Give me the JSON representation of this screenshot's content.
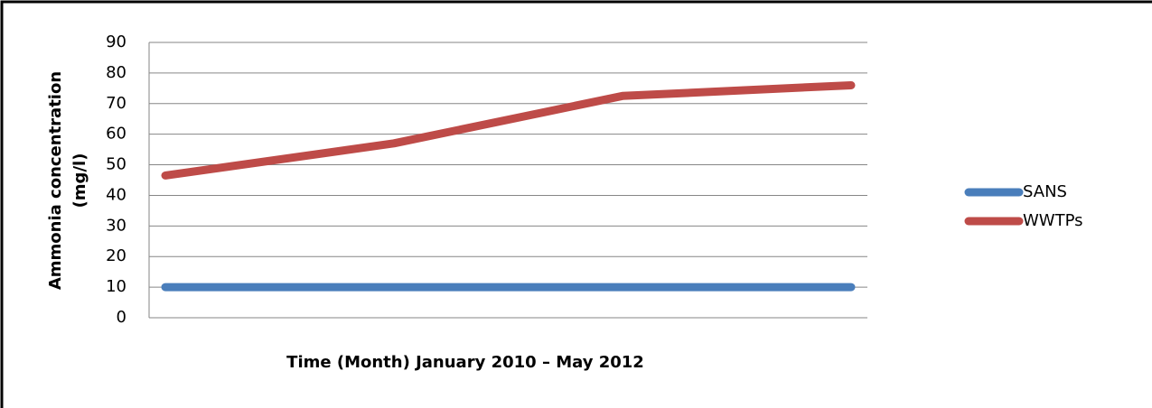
{
  "chart_data": {
    "type": "line",
    "y_label": [
      "Ammonia concentration",
      "(mg/l)"
    ],
    "x_label": "Time (Month) January 2010 – May 2012",
    "categories": [
      null,
      null,
      null,
      null
    ],
    "series": [
      {
        "name": "SANS",
        "color": "#4a7ebb",
        "values": [
          10,
          10,
          10,
          10
        ]
      },
      {
        "name": "WWTPs",
        "color": "#be4b48",
        "values": [
          46.5,
          57,
          72.5,
          76
        ]
      }
    ],
    "ylim": [
      0,
      90
    ],
    "yticks": [
      0,
      10,
      20,
      30,
      40,
      50,
      60,
      70,
      80,
      90
    ],
    "grid": true,
    "legend": "right"
  }
}
